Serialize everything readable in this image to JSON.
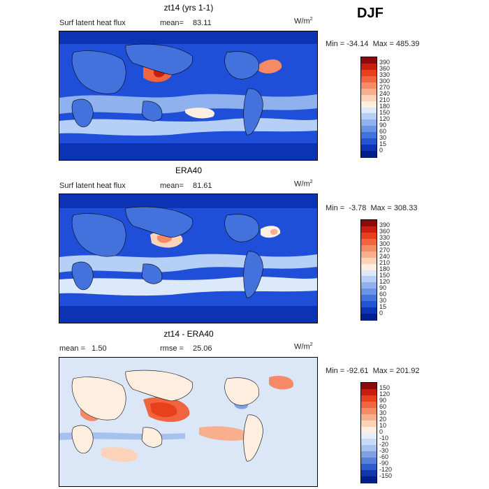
{
  "season": "DJF",
  "panels": [
    {
      "id": "model",
      "title": "zt14 (yrs 1-1)",
      "left_text": "Surf latent heat flux",
      "stat_label": "mean=",
      "stat_value": "83.11",
      "units": "W/m",
      "units_exp": "2",
      "minmax_text": "Min = -34.14  Max = 485.39",
      "map_fill": "#1f4ed8",
      "colorbar": {
        "labels": [
          "390",
          "360",
          "330",
          "300",
          "270",
          "240",
          "210",
          "180",
          "150",
          "120",
          "90",
          "60",
          "30",
          "15",
          "0"
        ],
        "colors": [
          "#8b0a0a",
          "#c81e10",
          "#e8401c",
          "#f06440",
          "#f58a66",
          "#f9ae8e",
          "#fcd2b8",
          "#fdeee0",
          "#dbe9fb",
          "#b5cff6",
          "#8fb2ef",
          "#6a93e6",
          "#4472dc",
          "#2455d0",
          "#0c33b4",
          "#001e8c"
        ]
      }
    },
    {
      "id": "obs",
      "title": "ERA40",
      "left_text": "Surf latent heat flux",
      "stat_label": "mean=",
      "stat_value": "81.61",
      "units": "W/m",
      "units_exp": "2",
      "minmax_text": "Min =  -3.78  Max = 308.33",
      "map_fill": "#1f4ed8",
      "colorbar": {
        "labels": [
          "390",
          "360",
          "330",
          "300",
          "270",
          "240",
          "210",
          "180",
          "150",
          "120",
          "90",
          "60",
          "30",
          "15",
          "0"
        ],
        "colors": [
          "#8b0a0a",
          "#c81e10",
          "#e8401c",
          "#f06440",
          "#f58a66",
          "#f9ae8e",
          "#fcd2b8",
          "#fdeee0",
          "#dbe9fb",
          "#b5cff6",
          "#8fb2ef",
          "#6a93e6",
          "#4472dc",
          "#2455d0",
          "#0c33b4",
          "#001e8c"
        ]
      }
    },
    {
      "id": "diff",
      "title": "zt14 - ERA40",
      "left_text": "mean =   1.50",
      "stat_label": "rmse =",
      "stat_value": "25.06",
      "units": "W/m",
      "units_exp": "2",
      "minmax_text": "Min = -92.61  Max = 201.92",
      "map_fill": "#dbe6f7",
      "colorbar": {
        "labels": [
          "150",
          "120",
          "90",
          "60",
          "30",
          "20",
          "10",
          "0",
          "-10",
          "-20",
          "-30",
          "-60",
          "-90",
          "-120",
          "-150"
        ],
        "colors": [
          "#8b0a0a",
          "#c81e10",
          "#e8401c",
          "#f06440",
          "#f58a66",
          "#f9ae8e",
          "#fcd2b8",
          "#fdeee0",
          "#e6eefb",
          "#c8daf6",
          "#a6c1ee",
          "#7fa1e4",
          "#5680da",
          "#2f5ccd",
          "#1237ac",
          "#001e8c"
        ]
      }
    }
  ]
}
